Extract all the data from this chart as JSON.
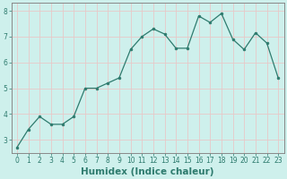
{
  "xlabel": "Humidex (Indice chaleur)",
  "x": [
    0,
    1,
    2,
    3,
    4,
    5,
    6,
    7,
    8,
    9,
    10,
    11,
    12,
    13,
    14,
    15,
    16,
    17,
    18,
    19,
    20,
    21,
    22,
    23
  ],
  "y": [
    2.7,
    3.4,
    3.9,
    3.6,
    3.6,
    3.9,
    5.0,
    5.0,
    5.2,
    5.4,
    6.5,
    7.0,
    7.3,
    7.1,
    6.55,
    6.55,
    7.8,
    7.55,
    7.9,
    6.9,
    6.5,
    7.15,
    6.75,
    5.4
  ],
  "line_color": "#2e7b6e",
  "marker": "o",
  "marker_size": 2,
  "bg_color": "#cef0ec",
  "grid_color": "#e8c8c8",
  "axis_color": "#2e7b6e",
  "spine_color": "#888888",
  "ylim": [
    2.5,
    8.3
  ],
  "xlim": [
    -0.5,
    23.5
  ],
  "yticks": [
    3,
    4,
    5,
    6,
    7,
    8
  ],
  "xticks": [
    0,
    1,
    2,
    3,
    4,
    5,
    6,
    7,
    8,
    9,
    10,
    11,
    12,
    13,
    14,
    15,
    16,
    17,
    18,
    19,
    20,
    21,
    22,
    23
  ],
  "tick_fontsize": 5.5,
  "xlabel_fontsize": 7.5
}
